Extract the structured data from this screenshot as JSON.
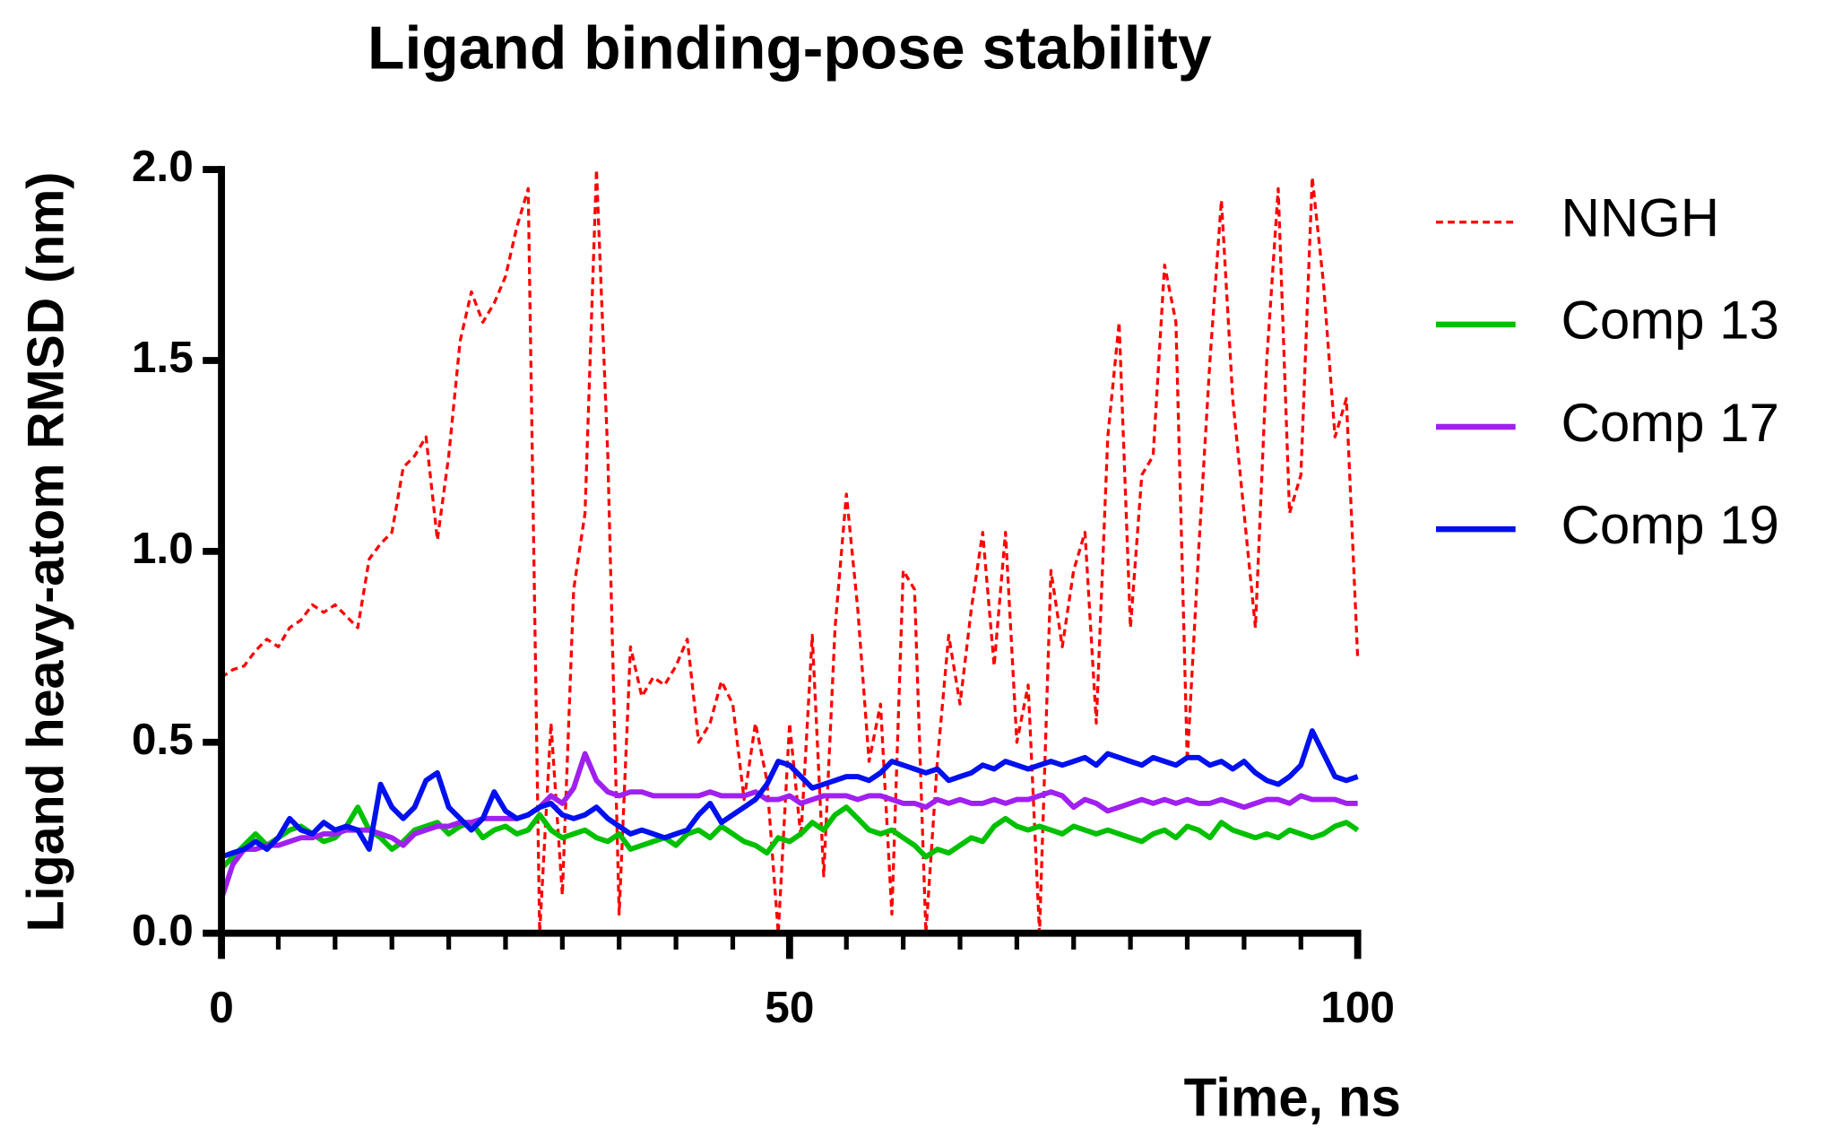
{
  "chart_data": {
    "type": "line",
    "title": "Ligand binding-pose stability",
    "xlabel": "Time, ns",
    "ylabel": "Ligand heavy-atom RMSD (nm)",
    "xlim": [
      0,
      100
    ],
    "ylim": [
      0,
      2.0
    ],
    "xticks": [
      0,
      50,
      100
    ],
    "xminorticks": [
      5,
      10,
      15,
      20,
      25,
      30,
      35,
      40,
      45,
      55,
      60,
      65,
      70,
      75,
      80,
      85,
      90,
      95
    ],
    "yticks": [
      {
        "value": 0,
        "label": "0.0"
      },
      {
        "value": 0.5,
        "label": "0.5"
      },
      {
        "value": 1,
        "label": "1.0"
      },
      {
        "value": 1.5,
        "label": "1.5"
      },
      {
        "value": 2,
        "label": "2.0"
      }
    ],
    "legend": "right",
    "x": [
      0,
      1,
      2,
      3,
      4,
      5,
      6,
      7,
      8,
      9,
      10,
      11,
      12,
      13,
      14,
      15,
      16,
      17,
      18,
      19,
      20,
      21,
      22,
      23,
      24,
      25,
      26,
      27,
      28,
      29,
      30,
      31,
      32,
      33,
      34,
      35,
      36,
      37,
      38,
      39,
      40,
      41,
      42,
      43,
      44,
      45,
      46,
      47,
      48,
      49,
      50,
      51,
      52,
      53,
      54,
      55,
      56,
      57,
      58,
      59,
      60,
      61,
      62,
      63,
      64,
      65,
      66,
      67,
      68,
      69,
      70,
      71,
      72,
      73,
      74,
      75,
      76,
      77,
      78,
      79,
      80,
      81,
      82,
      83,
      84,
      85,
      86,
      87,
      88,
      89,
      90,
      91,
      92,
      93,
      94,
      95,
      96,
      97,
      98,
      99,
      100
    ],
    "series": [
      {
        "name": "NNGH",
        "color": "#ff0000",
        "style": "dashed",
        "values": [
          0.67,
          0.69,
          0.7,
          0.74,
          0.77,
          0.75,
          0.8,
          0.82,
          0.86,
          0.84,
          0.86,
          0.83,
          0.8,
          0.98,
          1.02,
          1.05,
          1.22,
          1.25,
          1.3,
          1.03,
          1.25,
          1.55,
          1.68,
          1.6,
          1.65,
          1.72,
          1.85,
          1.95,
          0.0,
          0.55,
          0.1,
          0.9,
          1.1,
          2.0,
          1.25,
          0.05,
          0.75,
          0.62,
          0.67,
          0.65,
          0.7,
          0.77,
          0.5,
          0.55,
          0.66,
          0.6,
          0.35,
          0.55,
          0.4,
          0.0,
          0.55,
          0.25,
          0.78,
          0.15,
          0.8,
          1.15,
          0.85,
          0.45,
          0.6,
          0.05,
          0.95,
          0.9,
          0.0,
          0.45,
          0.78,
          0.6,
          0.85,
          1.05,
          0.7,
          1.05,
          0.5,
          0.65,
          0.0,
          0.95,
          0.75,
          0.95,
          1.05,
          0.55,
          1.3,
          1.6,
          0.8,
          1.2,
          1.25,
          1.75,
          1.6,
          0.45,
          1.0,
          1.5,
          1.92,
          1.4,
          1.1,
          0.8,
          1.5,
          1.95,
          1.1,
          1.2,
          1.98,
          1.7,
          1.3,
          1.4,
          0.72
        ]
      },
      {
        "name": "Comp 13",
        "color": "#00c000",
        "style": "solid",
        "values": [
          0.17,
          0.2,
          0.23,
          0.26,
          0.23,
          0.25,
          0.27,
          0.28,
          0.26,
          0.24,
          0.25,
          0.28,
          0.33,
          0.27,
          0.25,
          0.22,
          0.24,
          0.27,
          0.28,
          0.29,
          0.26,
          0.28,
          0.29,
          0.25,
          0.27,
          0.28,
          0.26,
          0.27,
          0.31,
          0.27,
          0.25,
          0.26,
          0.27,
          0.25,
          0.24,
          0.26,
          0.22,
          0.23,
          0.24,
          0.25,
          0.23,
          0.26,
          0.27,
          0.25,
          0.28,
          0.26,
          0.24,
          0.23,
          0.21,
          0.25,
          0.24,
          0.26,
          0.29,
          0.27,
          0.31,
          0.33,
          0.3,
          0.27,
          0.26,
          0.27,
          0.25,
          0.23,
          0.2,
          0.22,
          0.21,
          0.23,
          0.25,
          0.24,
          0.28,
          0.3,
          0.28,
          0.27,
          0.28,
          0.27,
          0.26,
          0.28,
          0.27,
          0.26,
          0.27,
          0.26,
          0.25,
          0.24,
          0.26,
          0.27,
          0.25,
          0.28,
          0.27,
          0.25,
          0.29,
          0.27,
          0.26,
          0.25,
          0.26,
          0.25,
          0.27,
          0.26,
          0.25,
          0.26,
          0.28,
          0.29,
          0.27
        ]
      },
      {
        "name": "Comp 17",
        "color": "#a020f0",
        "style": "solid",
        "values": [
          0.09,
          0.18,
          0.22,
          0.22,
          0.23,
          0.23,
          0.24,
          0.25,
          0.25,
          0.26,
          0.26,
          0.27,
          0.27,
          0.27,
          0.26,
          0.25,
          0.23,
          0.26,
          0.27,
          0.28,
          0.28,
          0.29,
          0.29,
          0.3,
          0.3,
          0.3,
          0.3,
          0.31,
          0.33,
          0.36,
          0.34,
          0.38,
          0.47,
          0.4,
          0.37,
          0.36,
          0.37,
          0.37,
          0.36,
          0.36,
          0.36,
          0.36,
          0.36,
          0.37,
          0.36,
          0.36,
          0.36,
          0.37,
          0.35,
          0.35,
          0.36,
          0.34,
          0.35,
          0.36,
          0.36,
          0.36,
          0.35,
          0.36,
          0.36,
          0.35,
          0.34,
          0.34,
          0.33,
          0.35,
          0.34,
          0.35,
          0.34,
          0.34,
          0.35,
          0.34,
          0.35,
          0.35,
          0.36,
          0.37,
          0.36,
          0.33,
          0.35,
          0.34,
          0.32,
          0.33,
          0.34,
          0.35,
          0.34,
          0.35,
          0.34,
          0.35,
          0.34,
          0.34,
          0.35,
          0.34,
          0.33,
          0.34,
          0.35,
          0.35,
          0.34,
          0.36,
          0.35,
          0.35,
          0.35,
          0.34,
          0.34
        ]
      },
      {
        "name": "Comp 19",
        "color": "#0010ee",
        "style": "solid",
        "values": [
          0.2,
          0.21,
          0.22,
          0.24,
          0.22,
          0.25,
          0.3,
          0.27,
          0.26,
          0.29,
          0.27,
          0.28,
          0.27,
          0.22,
          0.39,
          0.33,
          0.3,
          0.33,
          0.4,
          0.42,
          0.33,
          0.3,
          0.27,
          0.3,
          0.37,
          0.32,
          0.3,
          0.31,
          0.33,
          0.34,
          0.31,
          0.3,
          0.31,
          0.33,
          0.3,
          0.28,
          0.26,
          0.27,
          0.26,
          0.25,
          0.26,
          0.27,
          0.31,
          0.34,
          0.29,
          0.31,
          0.33,
          0.35,
          0.39,
          0.45,
          0.44,
          0.41,
          0.38,
          0.39,
          0.4,
          0.41,
          0.41,
          0.4,
          0.42,
          0.45,
          0.44,
          0.43,
          0.42,
          0.43,
          0.4,
          0.41,
          0.42,
          0.44,
          0.43,
          0.45,
          0.44,
          0.43,
          0.44,
          0.45,
          0.44,
          0.45,
          0.46,
          0.44,
          0.47,
          0.46,
          0.45,
          0.44,
          0.46,
          0.45,
          0.44,
          0.46,
          0.46,
          0.44,
          0.45,
          0.43,
          0.45,
          0.42,
          0.4,
          0.39,
          0.41,
          0.44,
          0.53,
          0.47,
          0.41,
          0.4,
          0.41
        ]
      }
    ]
  }
}
